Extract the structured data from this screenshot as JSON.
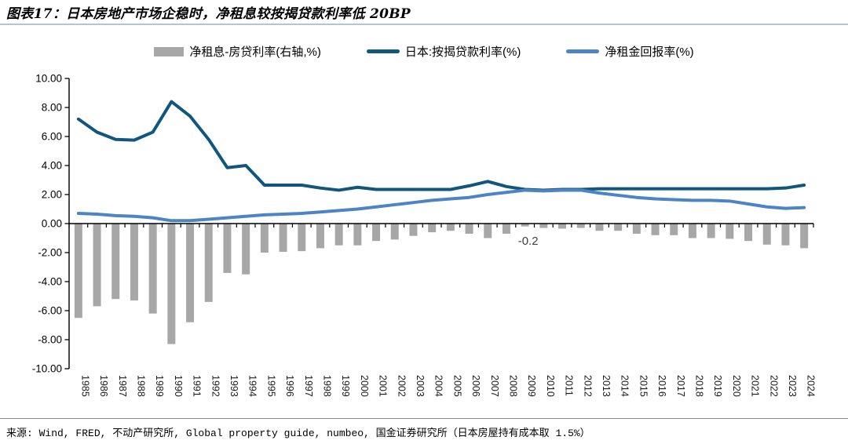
{
  "header": {
    "title": "图表17：日本房地产市场企稳时，净租息较按揭贷款利率低 20BP"
  },
  "footer": {
    "source": "来源: Wind, FRED, 不动产研究所, Global property guide, numbeo, 国金证券研究所（日本房屋持有成本取 1.5%）"
  },
  "colors": {
    "bar_gray": "#a7a7a7",
    "mortgage_dark_blue": "#11567c",
    "rental_light_blue": "#4c84c4",
    "title_rule": "#b3c5cf",
    "axis_black": "#000000",
    "annotation_gray": "#404040"
  },
  "chart_data": {
    "type": "combo",
    "title": "",
    "xlabel": "",
    "ylabel": "",
    "ylim": [
      -10,
      10
    ],
    "ytick_step": 2,
    "y_ticks": [
      "10.00",
      "8.00",
      "6.00",
      "4.00",
      "2.00",
      "0.00",
      "-2.00",
      "-4.00",
      "-6.00",
      "-8.00",
      "-10.00"
    ],
    "grid": false,
    "legend_position": "top",
    "categories": [
      "1985",
      "1986",
      "1987",
      "1988",
      "1989",
      "1990",
      "1991",
      "1992",
      "1993",
      "1994",
      "1995",
      "1996",
      "1997",
      "1998",
      "1999",
      "2000",
      "2001",
      "2002",
      "2003",
      "2004",
      "2005",
      "2006",
      "2007",
      "2008",
      "2009",
      "2010",
      "2011",
      "2012",
      "2013",
      "2014",
      "2015",
      "2016",
      "2017",
      "2018",
      "2019",
      "2020",
      "2021",
      "2022",
      "2023",
      "2024"
    ],
    "series": [
      {
        "name": "净租息-房贷利率(右轴,%)",
        "kind": "bar",
        "color": "#a7a7a7",
        "values": [
          -6.5,
          -5.7,
          -5.2,
          -5.3,
          -6.2,
          -8.3,
          -6.8,
          -5.4,
          -3.4,
          -3.5,
          -2.0,
          -1.95,
          -1.9,
          -1.7,
          -1.5,
          -1.5,
          -1.2,
          -1.1,
          -0.85,
          -0.6,
          -0.5,
          -0.7,
          -1.0,
          -0.7,
          -0.2,
          -0.3,
          -0.35,
          -0.3,
          -0.5,
          -0.5,
          -0.7,
          -0.8,
          -0.8,
          -1.0,
          -1.0,
          -1.05,
          -1.2,
          -1.45,
          -1.5,
          -1.7
        ]
      },
      {
        "name": "日本:按揭贷款利率(%)",
        "kind": "line",
        "color": "#11567c",
        "values": [
          7.2,
          6.3,
          5.8,
          5.75,
          6.3,
          8.4,
          7.4,
          5.8,
          3.85,
          4.0,
          2.65,
          2.65,
          2.65,
          2.45,
          2.3,
          2.5,
          2.35,
          2.35,
          2.35,
          2.35,
          2.35,
          2.6,
          2.9,
          2.55,
          2.35,
          2.3,
          2.35,
          2.35,
          2.4,
          2.4,
          2.4,
          2.4,
          2.4,
          2.4,
          2.4,
          2.4,
          2.4,
          2.4,
          2.45,
          2.65
        ]
      },
      {
        "name": "净租金回报率(%)",
        "kind": "line",
        "color": "#4c84c4",
        "values": [
          0.7,
          0.65,
          0.55,
          0.5,
          0.4,
          0.2,
          0.2,
          0.3,
          0.4,
          0.5,
          0.6,
          0.65,
          0.7,
          0.8,
          0.9,
          1.0,
          1.15,
          1.3,
          1.45,
          1.6,
          1.7,
          1.8,
          2.0,
          2.15,
          2.3,
          2.25,
          2.3,
          2.3,
          2.1,
          1.95,
          1.8,
          1.7,
          1.65,
          1.6,
          1.6,
          1.55,
          1.35,
          1.15,
          1.05,
          1.1
        ]
      }
    ],
    "annotation": {
      "text": "-0.2",
      "category": "2009",
      "y": -1.2
    }
  }
}
